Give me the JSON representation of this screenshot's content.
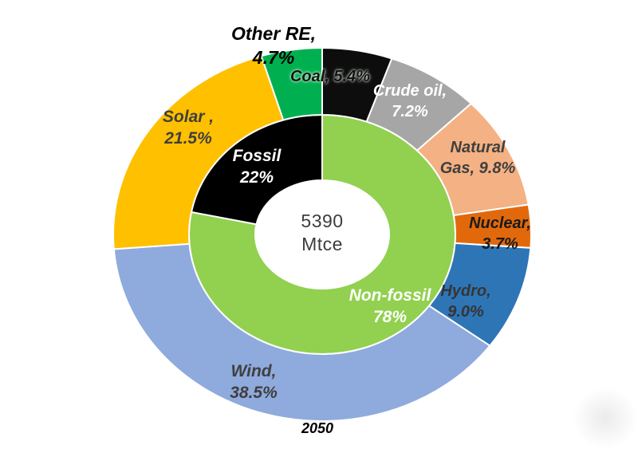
{
  "chart_data": {
    "type": "donut",
    "year": "2050",
    "center_label": {
      "value": "5390",
      "unit": "Mtce"
    },
    "start_angle_deg": 0,
    "direction": "clockwise",
    "legend": "none",
    "rings": {
      "inner": {
        "name": "fossil-vs-nonfossil",
        "segments": [
          {
            "label": "Non-fossil",
            "value": 78,
            "color": "#92d050"
          },
          {
            "label": "Fossil",
            "value": 22,
            "color": "#000000"
          }
        ]
      },
      "outer": {
        "name": "fuel-mix",
        "segments": [
          {
            "label": "Coal",
            "value": 5.4,
            "color": "#0d0d0d"
          },
          {
            "label": "Crude oil",
            "value": 7.2,
            "color": "#a6a6a6"
          },
          {
            "label": "Natural Gas",
            "value": 9.8,
            "color": "#f4b183"
          },
          {
            "label": "Nuclear",
            "value": 3.7,
            "color": "#e2690b"
          },
          {
            "label": "Hydro",
            "value": 9.0,
            "color": "#2e75b6"
          },
          {
            "label": "Wind",
            "value": 38.5,
            "color": "#8faadc"
          },
          {
            "label": "Solar",
            "value": 21.5,
            "color": "#ffc000"
          },
          {
            "label": "Other RE",
            "value": 4.7,
            "color": "#00b050"
          }
        ]
      }
    }
  },
  "labels": {
    "other_re": {
      "l1": "Other RE,",
      "l2": "4.7%"
    },
    "coal": {
      "l1": "Coal, 5.4%"
    },
    "crude_oil": {
      "l1": "Crude oil,",
      "l2": "7.2%"
    },
    "natural_gas": {
      "l1": "Natural",
      "l2": "Gas, 9.8%"
    },
    "nuclear": {
      "l1": "Nuclear,",
      "l2": "3.7%"
    },
    "hydro": {
      "l1": "Hydro,",
      "l2": "9.0%"
    },
    "wind": {
      "l1": "Wind,",
      "l2": "38.5%"
    },
    "solar": {
      "l1": "Solar ,",
      "l2": "21.5%"
    },
    "fossil": {
      "l1": "Fossil",
      "l2": "22%"
    },
    "non_fossil": {
      "l1": "Non-fossil",
      "l2": "78%"
    },
    "center": {
      "l1": "5390",
      "l2": "Mtce"
    },
    "year": "2050"
  }
}
